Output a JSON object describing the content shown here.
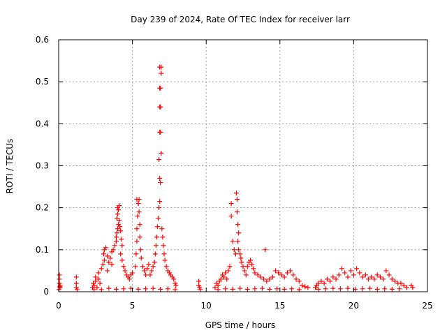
{
  "chart_data": {
    "type": "scatter",
    "title": "Day 239 of 2024, Rate Of TEC Index for receiver larr",
    "xlabel": "GPS time / hours",
    "ylabel": "ROTI / TECUs",
    "xlim": [
      0,
      25
    ],
    "ylim": [
      0,
      0.6
    ],
    "xticks": [
      0,
      5,
      10,
      15,
      20,
      25
    ],
    "xtick_labels": [
      "0",
      "5",
      "10",
      "15",
      "20",
      "25"
    ],
    "yticks": [
      0,
      0.1,
      0.2,
      0.3,
      0.4,
      0.5,
      0.6
    ],
    "ytick_labels": [
      "0",
      "0.1",
      "0.2",
      "0.3",
      "0.4",
      "0.5",
      "0.6"
    ],
    "grid": true,
    "marker": "+",
    "marker_color": "#ff0000",
    "series": [
      {
        "name": "ROTI",
        "points": [
          [
            0.05,
            0.04
          ],
          [
            0.05,
            0.03
          ],
          [
            0.05,
            0.02
          ],
          [
            0.1,
            0.015
          ],
          [
            0.1,
            0.01
          ],
          [
            0.02,
            0.005
          ],
          [
            0.08,
            0.012
          ],
          [
            1.2,
            0.035
          ],
          [
            1.2,
            0.02
          ],
          [
            1.2,
            0.01
          ],
          [
            1.25,
            0.005
          ],
          [
            2.3,
            0.01
          ],
          [
            2.35,
            0.02
          ],
          [
            2.4,
            0.015
          ],
          [
            2.5,
            0.025
          ],
          [
            2.6,
            0.01
          ],
          [
            2.7,
            0.03
          ],
          [
            2.8,
            0.02
          ],
          [
            2.5,
            0.035
          ],
          [
            2.7,
            0.045
          ],
          [
            2.9,
            0.055
          ],
          [
            3.0,
            0.065
          ],
          [
            3.1,
            0.075
          ],
          [
            3.05,
            0.09
          ],
          [
            3.1,
            0.1
          ],
          [
            3.2,
            0.105
          ],
          [
            3.3,
            0.085
          ],
          [
            3.4,
            0.07
          ],
          [
            3.5,
            0.08
          ],
          [
            3.6,
            0.095
          ],
          [
            3.7,
            0.1
          ],
          [
            3.8,
            0.11
          ],
          [
            3.9,
            0.12
          ],
          [
            3.6,
            0.065
          ],
          [
            3.3,
            0.05
          ],
          [
            3.9,
            0.13
          ],
          [
            3.95,
            0.14
          ],
          [
            4.0,
            0.15
          ],
          [
            4.05,
            0.16
          ],
          [
            3.95,
            0.175
          ],
          [
            4.0,
            0.185
          ],
          [
            4.05,
            0.195
          ],
          [
            4.1,
            0.205
          ],
          [
            4.0,
            0.2
          ],
          [
            4.1,
            0.17
          ],
          [
            4.15,
            0.155
          ],
          [
            4.2,
            0.145
          ],
          [
            4.25,
            0.125
          ],
          [
            4.3,
            0.11
          ],
          [
            4.2,
            0.09
          ],
          [
            4.3,
            0.075
          ],
          [
            4.4,
            0.06
          ],
          [
            4.5,
            0.05
          ],
          [
            4.6,
            0.04
          ],
          [
            4.7,
            0.035
          ],
          [
            4.8,
            0.03
          ],
          [
            4.9,
            0.04
          ],
          [
            5.0,
            0.045
          ],
          [
            5.2,
            0.06
          ],
          [
            5.25,
            0.09
          ],
          [
            5.3,
            0.12
          ],
          [
            5.3,
            0.15
          ],
          [
            5.35,
            0.18
          ],
          [
            5.4,
            0.21
          ],
          [
            5.3,
            0.22
          ],
          [
            5.45,
            0.22
          ],
          [
            5.45,
            0.19
          ],
          [
            5.5,
            0.16
          ],
          [
            5.5,
            0.13
          ],
          [
            5.55,
            0.1
          ],
          [
            5.6,
            0.08
          ],
          [
            5.7,
            0.06
          ],
          [
            5.8,
            0.05
          ],
          [
            5.9,
            0.04
          ],
          [
            6.0,
            0.055
          ],
          [
            6.1,
            0.065
          ],
          [
            6.2,
            0.04
          ],
          [
            6.3,
            0.05
          ],
          [
            6.4,
            0.06
          ],
          [
            6.5,
            0.07
          ],
          [
            6.55,
            0.09
          ],
          [
            6.6,
            0.11
          ],
          [
            6.65,
            0.13
          ],
          [
            6.7,
            0.155
          ],
          [
            6.75,
            0.175
          ],
          [
            6.8,
            0.2
          ],
          [
            6.85,
            0.215
          ],
          [
            6.9,
            0.26
          ],
          [
            6.85,
            0.27
          ],
          [
            6.8,
            0.315
          ],
          [
            6.95,
            0.33
          ],
          [
            6.85,
            0.38
          ],
          [
            6.9,
            0.38
          ],
          [
            6.85,
            0.44
          ],
          [
            6.9,
            0.44
          ],
          [
            6.85,
            0.485
          ],
          [
            6.9,
            0.485
          ],
          [
            6.95,
            0.52
          ],
          [
            6.85,
            0.535
          ],
          [
            6.95,
            0.535
          ],
          [
            7.0,
            0.15
          ],
          [
            7.05,
            0.13
          ],
          [
            7.1,
            0.11
          ],
          [
            7.15,
            0.09
          ],
          [
            7.2,
            0.075
          ],
          [
            7.3,
            0.06
          ],
          [
            7.4,
            0.05
          ],
          [
            7.5,
            0.045
          ],
          [
            7.6,
            0.04
          ],
          [
            7.7,
            0.035
          ],
          [
            7.8,
            0.03
          ],
          [
            7.9,
            0.02
          ],
          [
            7.95,
            0.015
          ],
          [
            2.4,
            0.005
          ],
          [
            2.9,
            0.005
          ],
          [
            3.4,
            0.008
          ],
          [
            3.9,
            0.006
          ],
          [
            4.4,
            0.007
          ],
          [
            4.9,
            0.008
          ],
          [
            5.4,
            0.006
          ],
          [
            5.9,
            0.007
          ],
          [
            6.4,
            0.008
          ],
          [
            6.9,
            0.006
          ],
          [
            7.4,
            0.007
          ],
          [
            7.9,
            0.005
          ],
          [
            9.5,
            0.025
          ],
          [
            9.5,
            0.015
          ],
          [
            9.55,
            0.01
          ],
          [
            9.6,
            0.005
          ],
          [
            10.6,
            0.01
          ],
          [
            10.7,
            0.02
          ],
          [
            10.8,
            0.015
          ],
          [
            10.9,
            0.025
          ],
          [
            11.0,
            0.03
          ],
          [
            11.1,
            0.04
          ],
          [
            11.2,
            0.035
          ],
          [
            11.3,
            0.045
          ],
          [
            11.4,
            0.03
          ],
          [
            11.5,
            0.05
          ],
          [
            11.6,
            0.06
          ],
          [
            11.7,
            0.21
          ],
          [
            11.7,
            0.18
          ],
          [
            11.8,
            0.12
          ],
          [
            11.9,
            0.1
          ],
          [
            12.0,
            0.09
          ],
          [
            12.05,
            0.235
          ],
          [
            12.1,
            0.22
          ],
          [
            12.1,
            0.19
          ],
          [
            12.15,
            0.16
          ],
          [
            12.2,
            0.14
          ],
          [
            12.15,
            0.12
          ],
          [
            12.2,
            0.1
          ],
          [
            12.3,
            0.09
          ],
          [
            12.35,
            0.08
          ],
          [
            12.4,
            0.07
          ],
          [
            12.5,
            0.06
          ],
          [
            12.6,
            0.05
          ],
          [
            12.7,
            0.04
          ],
          [
            12.8,
            0.06
          ],
          [
            12.9,
            0.07
          ],
          [
            13.0,
            0.075
          ],
          [
            13.1,
            0.065
          ],
          [
            13.2,
            0.055
          ],
          [
            13.3,
            0.045
          ],
          [
            13.5,
            0.04
          ],
          [
            13.7,
            0.035
          ],
          [
            13.9,
            0.03
          ],
          [
            14.0,
            0.1
          ],
          [
            14.1,
            0.025
          ],
          [
            14.3,
            0.03
          ],
          [
            14.5,
            0.035
          ],
          [
            14.7,
            0.05
          ],
          [
            14.9,
            0.045
          ],
          [
            15.1,
            0.04
          ],
          [
            15.3,
            0.035
          ],
          [
            15.5,
            0.045
          ],
          [
            15.7,
            0.05
          ],
          [
            15.9,
            0.04
          ],
          [
            16.1,
            0.03
          ],
          [
            16.3,
            0.025
          ],
          [
            16.5,
            0.015
          ],
          [
            16.7,
            0.012
          ],
          [
            16.9,
            0.01
          ],
          [
            10.8,
            0.005
          ],
          [
            11.3,
            0.007
          ],
          [
            11.8,
            0.006
          ],
          [
            12.3,
            0.008
          ],
          [
            12.8,
            0.006
          ],
          [
            13.3,
            0.007
          ],
          [
            13.8,
            0.008
          ],
          [
            14.3,
            0.006
          ],
          [
            14.8,
            0.007
          ],
          [
            15.3,
            0.006
          ],
          [
            15.8,
            0.007
          ],
          [
            16.3,
            0.005
          ],
          [
            17.4,
            0.01
          ],
          [
            17.5,
            0.015
          ],
          [
            17.6,
            0.02
          ],
          [
            17.8,
            0.025
          ],
          [
            18.0,
            0.02
          ],
          [
            18.2,
            0.03
          ],
          [
            18.4,
            0.025
          ],
          [
            18.6,
            0.035
          ],
          [
            18.8,
            0.03
          ],
          [
            19.0,
            0.04
          ],
          [
            19.2,
            0.055
          ],
          [
            19.4,
            0.045
          ],
          [
            19.6,
            0.035
          ],
          [
            19.8,
            0.05
          ],
          [
            20.0,
            0.04
          ],
          [
            20.2,
            0.055
          ],
          [
            20.4,
            0.045
          ],
          [
            20.6,
            0.035
          ],
          [
            20.8,
            0.04
          ],
          [
            21.0,
            0.03
          ],
          [
            21.2,
            0.035
          ],
          [
            21.4,
            0.03
          ],
          [
            21.6,
            0.04
          ],
          [
            21.8,
            0.035
          ],
          [
            22.0,
            0.03
          ],
          [
            22.2,
            0.05
          ],
          [
            22.4,
            0.04
          ],
          [
            22.6,
            0.03
          ],
          [
            22.8,
            0.025
          ],
          [
            23.0,
            0.02
          ],
          [
            23.2,
            0.02
          ],
          [
            23.4,
            0.015
          ],
          [
            23.6,
            0.01
          ],
          [
            23.9,
            0.015
          ],
          [
            24.0,
            0.01
          ],
          [
            17.6,
            0.006
          ],
          [
            18.1,
            0.007
          ],
          [
            18.6,
            0.008
          ],
          [
            19.1,
            0.007
          ],
          [
            19.6,
            0.008
          ],
          [
            20.1,
            0.006
          ],
          [
            20.6,
            0.007
          ],
          [
            21.1,
            0.008
          ],
          [
            21.6,
            0.006
          ],
          [
            22.1,
            0.007
          ],
          [
            22.6,
            0.006
          ],
          [
            23.1,
            0.007
          ]
        ]
      }
    ]
  }
}
